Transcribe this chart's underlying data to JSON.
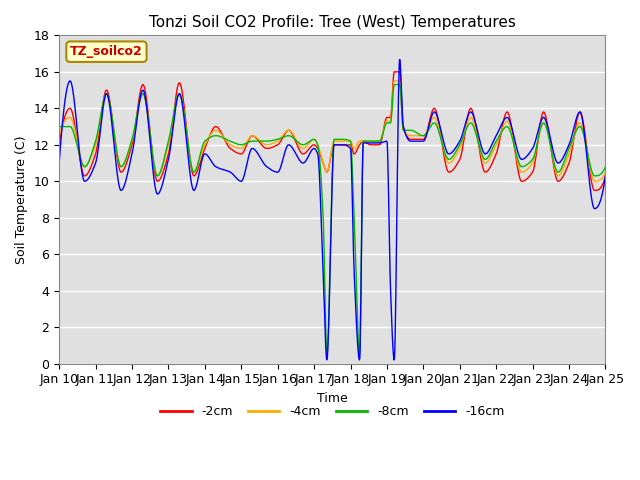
{
  "title": "Tonzi Soil CO2 Profile: Tree (West) Temperatures",
  "xlabel": "Time",
  "ylabel": "Soil Temperature (C)",
  "ylim": [
    0,
    18
  ],
  "legend_label": "TZ_soilco2",
  "series_labels": [
    "-2cm",
    "-4cm",
    "-8cm",
    "-16cm"
  ],
  "series_colors": [
    "#ff0000",
    "#ffaa00",
    "#00bb00",
    "#0000ff"
  ],
  "xtick_labels": [
    "Jan 10",
    "Jan 11",
    "Jan 12",
    "Jan 13",
    "Jan 14",
    "Jan 15",
    "Jan 16",
    "Jan 17",
    "Jan 18",
    "Jan 19",
    "Jan 20",
    "Jan 21",
    "Jan 22",
    "Jan 23",
    "Jan 24",
    "Jan 25"
  ],
  "grid_color": "#ffffff",
  "bg_color": "#e0e0e0"
}
